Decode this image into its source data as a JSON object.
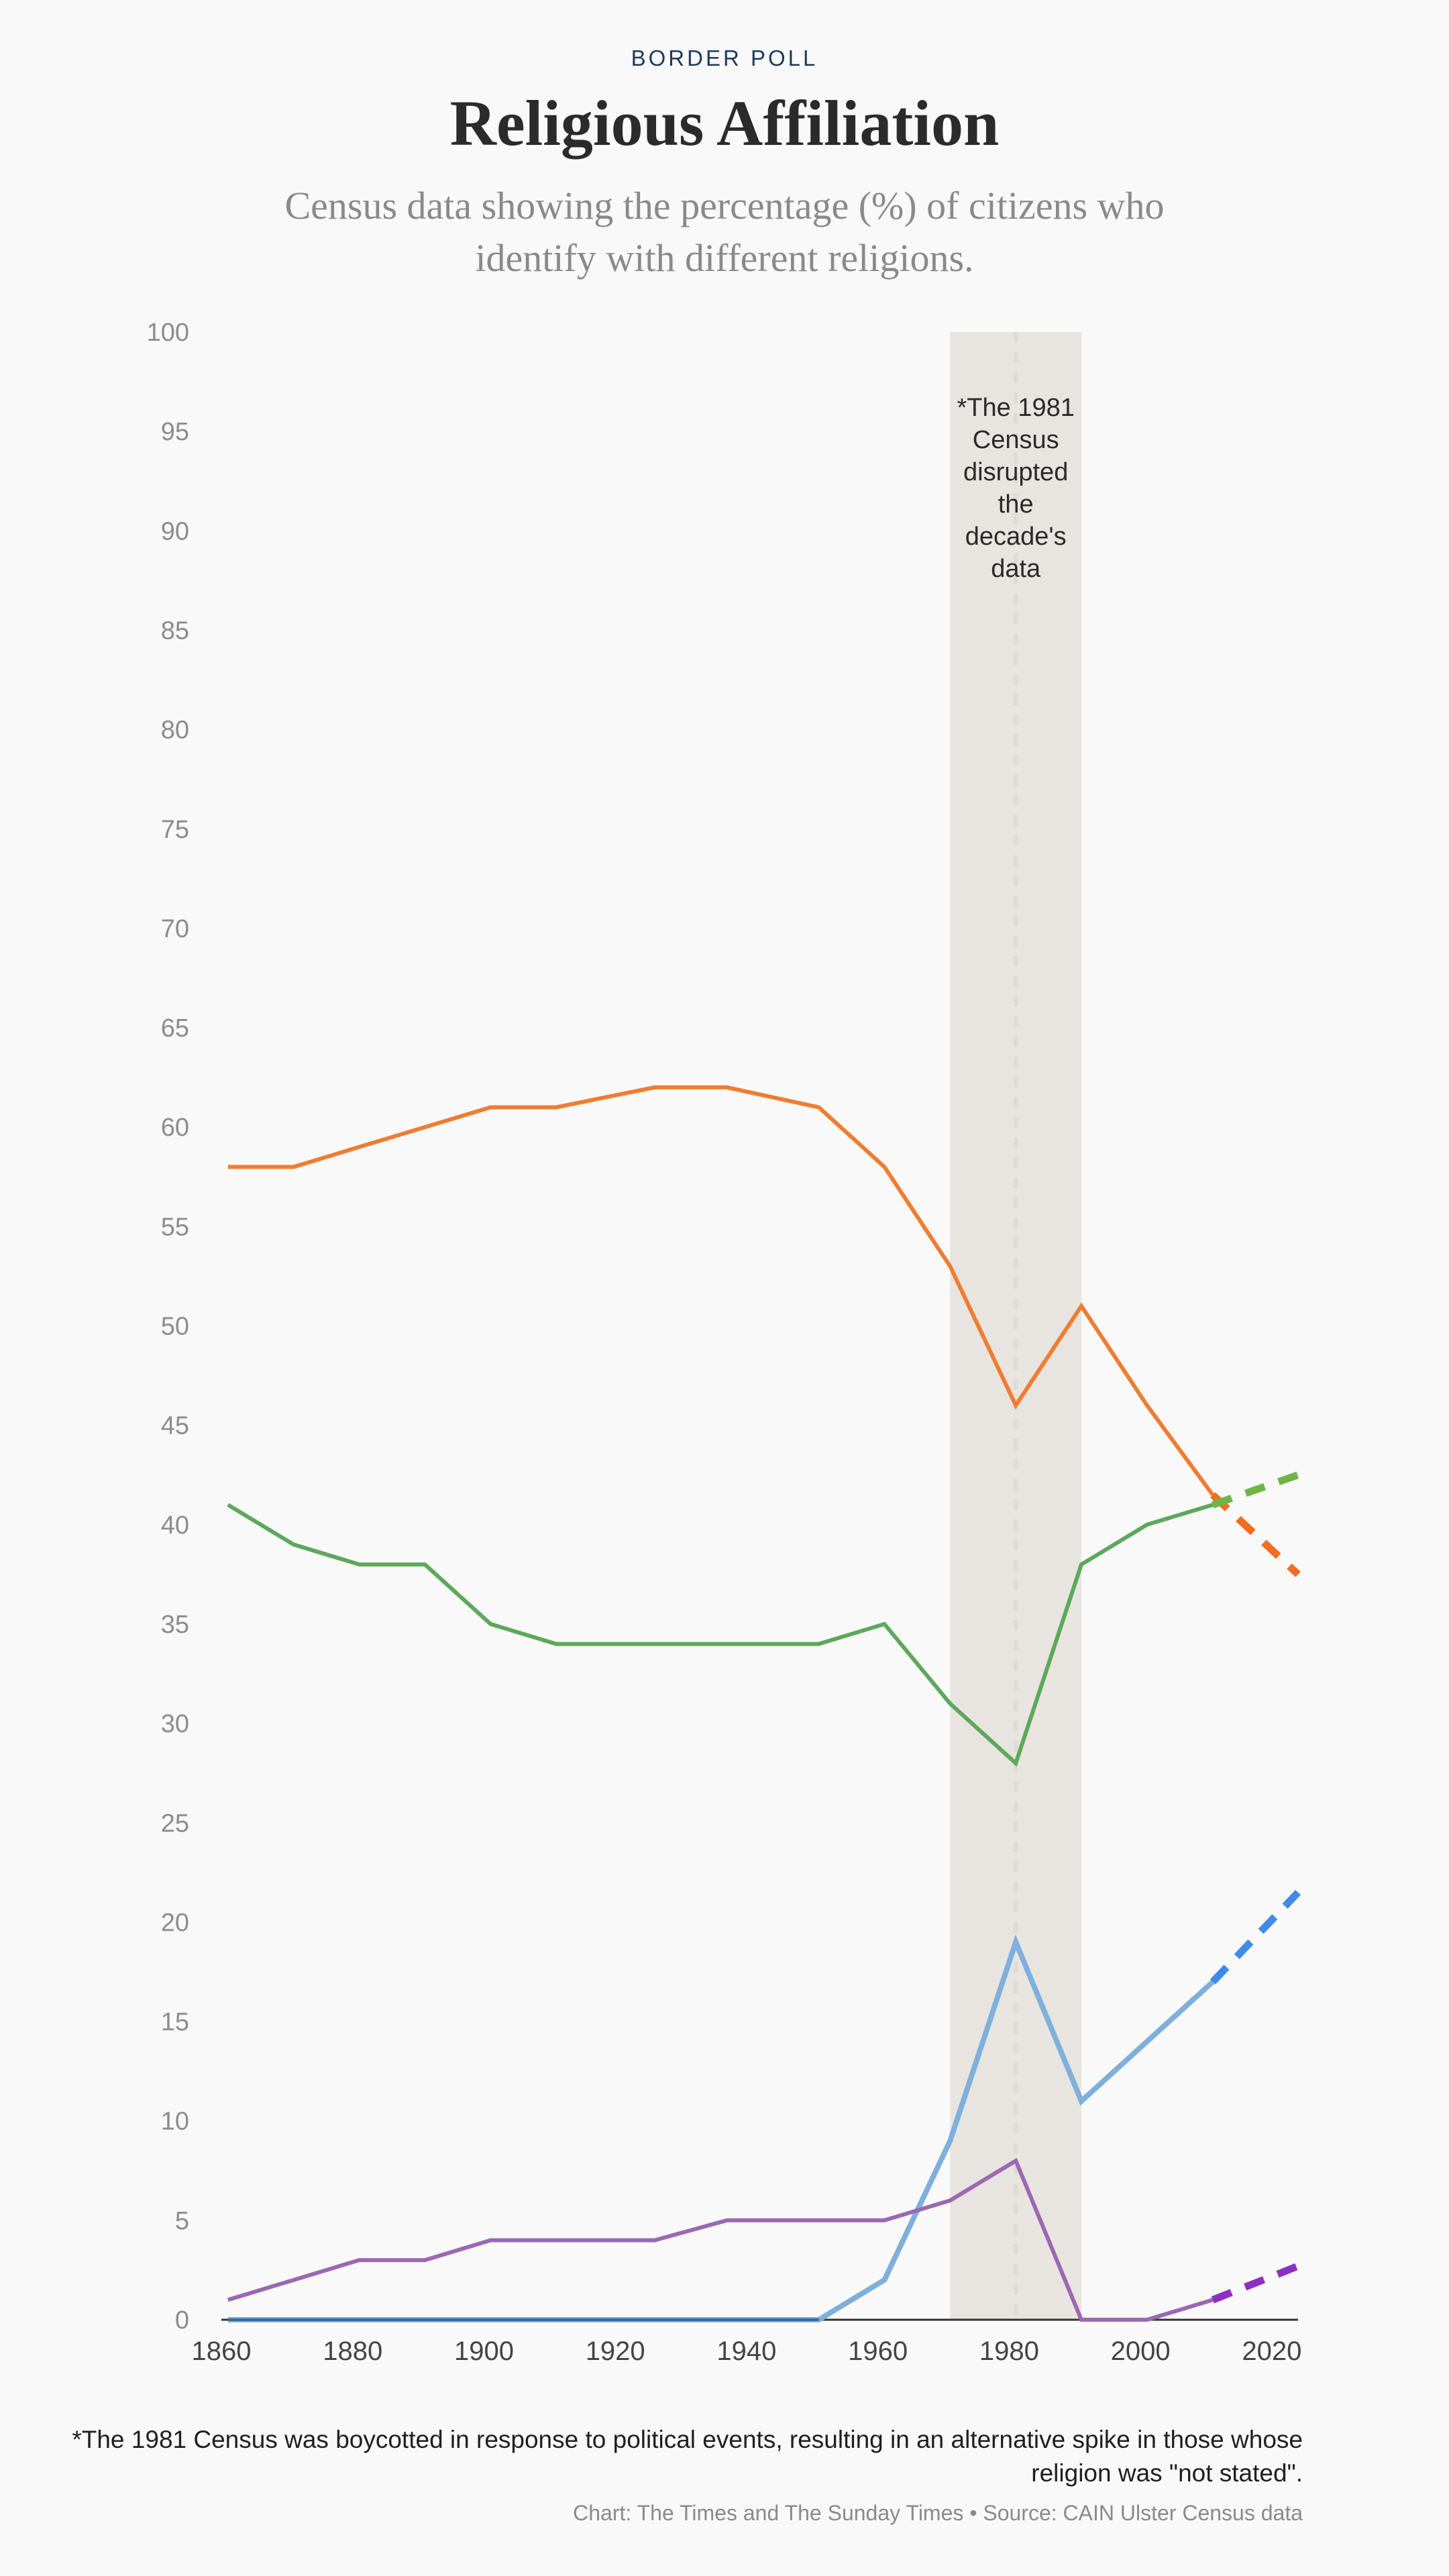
{
  "header": {
    "kicker": "BORDER POLL",
    "title": "Religious Affiliation",
    "subtitle": "Census data showing the percentage (%) of citizens who identify with different religions."
  },
  "footer": {
    "footnote": "*The 1981 Census was boycotted in response to political events, resulting in an alternative spike in those whose religion was \"not stated\".",
    "source": "Chart: The Times and The Sunday Times • Source: CAIN Ulster Census data"
  },
  "chart_data": {
    "type": "line",
    "title": "Religious Affiliation",
    "xlabel": "",
    "ylabel": "",
    "xlim": [
      1860,
      2024
    ],
    "ylim": [
      0,
      100
    ],
    "grid": false,
    "legend": "none",
    "x_ticks": [
      1860,
      1880,
      1900,
      1920,
      1940,
      1960,
      1980,
      2000,
      2020
    ],
    "y_ticks": [
      0,
      5,
      10,
      15,
      20,
      25,
      30,
      35,
      40,
      45,
      50,
      55,
      60,
      65,
      70,
      75,
      80,
      85,
      90,
      95,
      100
    ],
    "series": [
      {
        "color": "#ef7d31",
        "projection_color": "#f26d21",
        "points": [
          [
            1861,
            58
          ],
          [
            1871,
            58
          ],
          [
            1881,
            59
          ],
          [
            1891,
            60
          ],
          [
            1901,
            61
          ],
          [
            1911,
            61
          ],
          [
            1926,
            62
          ],
          [
            1937,
            62
          ],
          [
            1951,
            61
          ],
          [
            1961,
            58
          ],
          [
            1971,
            53
          ],
          [
            1981,
            46
          ],
          [
            1991,
            51
          ],
          [
            2001,
            46
          ],
          [
            2011,
            41.5
          ]
        ],
        "projection": [
          [
            2011,
            41.5
          ],
          [
            2024,
            37.5
          ]
        ]
      },
      {
        "color": "#5ea85c",
        "projection_color": "#6fb644",
        "points": [
          [
            1861,
            41
          ],
          [
            1871,
            39
          ],
          [
            1881,
            38
          ],
          [
            1891,
            38
          ],
          [
            1901,
            35
          ],
          [
            1911,
            34
          ],
          [
            1926,
            34
          ],
          [
            1937,
            34
          ],
          [
            1951,
            34
          ],
          [
            1961,
            35
          ],
          [
            1971,
            31
          ],
          [
            1981,
            28
          ],
          [
            1991,
            38
          ],
          [
            2001,
            40
          ],
          [
            2011,
            41
          ]
        ],
        "projection": [
          [
            2011,
            41
          ],
          [
            2024,
            42.5
          ]
        ]
      },
      {
        "color": "#7fb0dc",
        "projection_color": "#3f8be8",
        "points": [
          [
            1861,
            0
          ],
          [
            1871,
            0
          ],
          [
            1881,
            0
          ],
          [
            1891,
            0
          ],
          [
            1901,
            0
          ],
          [
            1911,
            0
          ],
          [
            1926,
            0
          ],
          [
            1937,
            0
          ],
          [
            1951,
            0
          ],
          [
            1961,
            2
          ],
          [
            1971,
            9
          ],
          [
            1981,
            19
          ],
          [
            1991,
            11
          ],
          [
            2001,
            14
          ],
          [
            2011,
            17
          ]
        ],
        "projection": [
          [
            2011,
            17
          ],
          [
            2024,
            21.5
          ]
        ]
      },
      {
        "color": "#9b68b2",
        "projection_color": "#8e2fc4",
        "points": [
          [
            1861,
            1
          ],
          [
            1871,
            2
          ],
          [
            1881,
            3
          ],
          [
            1891,
            3
          ],
          [
            1901,
            4
          ],
          [
            1911,
            4
          ],
          [
            1926,
            4
          ],
          [
            1937,
            5
          ],
          [
            1951,
            5
          ],
          [
            1961,
            5
          ],
          [
            1971,
            6
          ],
          [
            1981,
            8
          ],
          [
            1991,
            0
          ],
          [
            2001,
            0
          ],
          [
            2011,
            1
          ]
        ],
        "projection": [
          [
            2011,
            1
          ],
          [
            2024,
            2.7
          ]
        ]
      }
    ],
    "annotation": {
      "band_x": [
        1971,
        1991
      ],
      "marker_x": 1981,
      "text": [
        "*The 1981",
        "Census",
        "disrupted",
        "the",
        "decade's",
        "data"
      ]
    },
    "colors": {
      "band": "#e8e4df",
      "axis": "#333333",
      "tick_label": "#8c8c8c",
      "x_tick_label": "#444444"
    }
  }
}
